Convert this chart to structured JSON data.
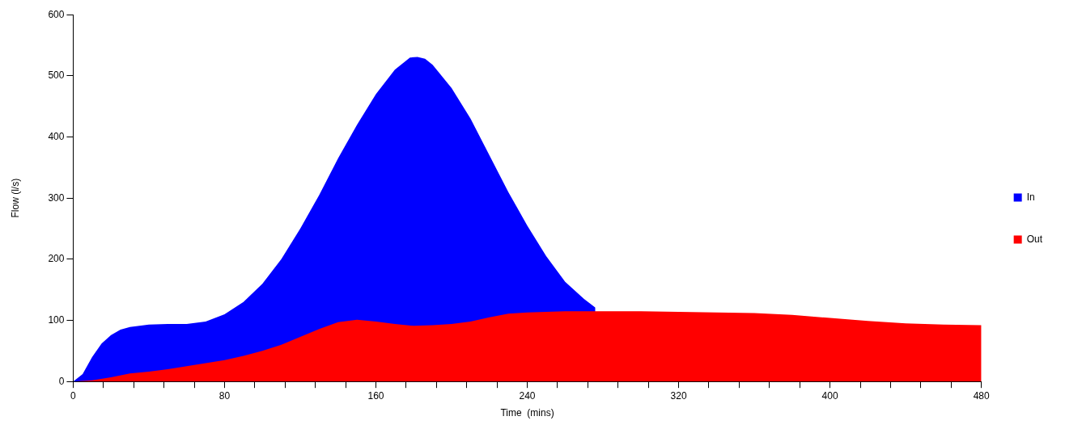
{
  "chart_data": {
    "type": "area",
    "xlabel": "Time  (mins)",
    "ylabel": "Flow (l/s)",
    "xlim": [
      0,
      480
    ],
    "ylim": [
      0,
      600
    ],
    "xticks": [
      0,
      {
        "value": 16,
        "label": null
      },
      {
        "value": 32,
        "label": null
      },
      {
        "value": 48,
        "label": null
      },
      {
        "value": 64,
        "label": null
      },
      80,
      {
        "value": 96,
        "label": null
      },
      {
        "value": 112,
        "label": null
      },
      {
        "value": 128,
        "label": null
      },
      {
        "value": 144,
        "label": null
      },
      160,
      {
        "value": 176,
        "label": null
      },
      {
        "value": 192,
        "label": null
      },
      {
        "value": 208,
        "label": null
      },
      {
        "value": 224,
        "label": null
      },
      240,
      {
        "value": 256,
        "label": null
      },
      {
        "value": 272,
        "label": null
      },
      {
        "value": 288,
        "label": null
      },
      {
        "value": 304,
        "label": null
      },
      320,
      {
        "value": 336,
        "label": null
      },
      {
        "value": 352,
        "label": null
      },
      {
        "value": 368,
        "label": null
      },
      {
        "value": 384,
        "label": null
      },
      400,
      {
        "value": 416,
        "label": null
      },
      {
        "value": 432,
        "label": null
      },
      {
        "value": 448,
        "label": null
      },
      {
        "value": 464,
        "label": null
      },
      480
    ],
    "yticks": [
      0,
      100,
      200,
      300,
      400,
      500,
      600
    ],
    "grid": false,
    "legend": "right",
    "series": [
      {
        "name": "In",
        "color": "#0000ff",
        "x": [
          0,
          5,
          10,
          15,
          20,
          25,
          30,
          40,
          50,
          60,
          70,
          80,
          90,
          100,
          110,
          120,
          130,
          140,
          150,
          160,
          170,
          178,
          182,
          186,
          190,
          200,
          210,
          220,
          230,
          240,
          250,
          260,
          270,
          276
        ],
        "values": [
          0,
          12,
          40,
          62,
          76,
          85,
          89,
          93,
          94,
          94,
          98,
          110,
          130,
          160,
          200,
          250,
          305,
          365,
          420,
          470,
          510,
          530,
          531,
          528,
          518,
          480,
          430,
          370,
          310,
          255,
          205,
          163,
          135,
          121
        ]
      },
      {
        "name": "Out",
        "color": "#ff0000",
        "x": [
          0,
          10,
          20,
          30,
          40,
          50,
          60,
          70,
          80,
          90,
          100,
          110,
          120,
          130,
          140,
          150,
          160,
          170,
          180,
          190,
          200,
          210,
          220,
          230,
          240,
          260,
          280,
          300,
          320,
          340,
          360,
          380,
          400,
          420,
          440,
          460,
          480
        ],
        "values": [
          0,
          2,
          7,
          13,
          16,
          20,
          25,
          30,
          35,
          42,
          50,
          60,
          73,
          86,
          97,
          101,
          98,
          94,
          91,
          92,
          94,
          98,
          105,
          111,
          113,
          115,
          115,
          115,
          114,
          113,
          112,
          109,
          104,
          99,
          95,
          93,
          92
        ]
      }
    ]
  }
}
